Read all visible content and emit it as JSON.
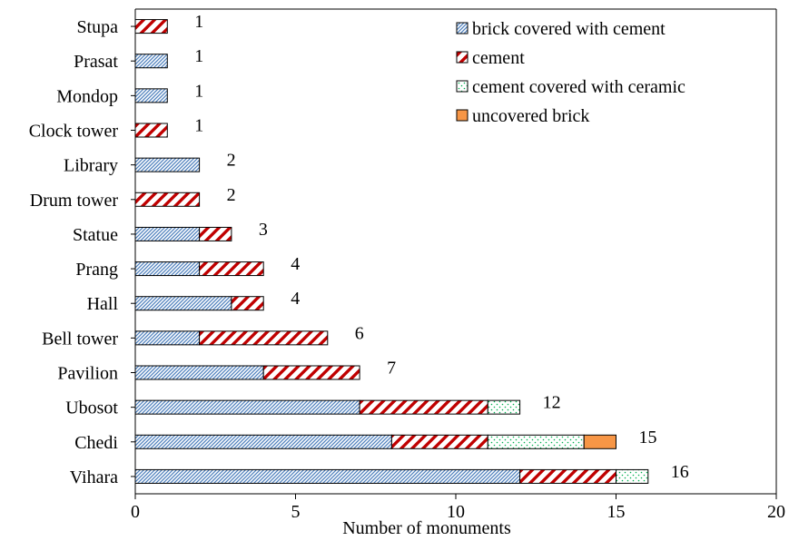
{
  "chart_data": {
    "type": "bar",
    "orientation": "horizontal",
    "stacked": true,
    "title": "",
    "xlabel": "Number of monuments",
    "ylabel": "",
    "xlim": [
      0,
      20
    ],
    "xticks": [
      0,
      5,
      10,
      15,
      20
    ],
    "grid": false,
    "legend_position": "top-right",
    "categories": [
      "Stupa",
      "Prasat",
      "Mondop",
      "Clock tower",
      "Library",
      "Drum tower",
      "Statue",
      "Prang",
      "Hall",
      "Bell tower",
      "Pavilion",
      "Ubosot",
      "Chedi",
      "Vihara"
    ],
    "series": [
      {
        "name": "brick covered with cement",
        "color": "#4f81bd",
        "pattern": "diagonal-hatch",
        "values": [
          0,
          1,
          1,
          0,
          2,
          0,
          2,
          2,
          3,
          2,
          4,
          7,
          8,
          12
        ]
      },
      {
        "name": "cement",
        "color": "#c00000",
        "pattern": "wide-diagonal-stripes",
        "values": [
          1,
          0,
          0,
          1,
          0,
          2,
          1,
          2,
          1,
          4,
          3,
          4,
          3,
          3
        ]
      },
      {
        "name": "cement covered with ceramic",
        "color": "#00b050",
        "pattern": "dots",
        "values": [
          0,
          0,
          0,
          0,
          0,
          0,
          0,
          0,
          0,
          0,
          0,
          1,
          3,
          1
        ]
      },
      {
        "name": "uncovered brick",
        "color": "#f79646",
        "pattern": "solid",
        "values": [
          0,
          0,
          0,
          0,
          0,
          0,
          0,
          0,
          0,
          0,
          0,
          0,
          1,
          0
        ]
      }
    ],
    "totals": [
      1,
      1,
      1,
      1,
      2,
      2,
      3,
      4,
      4,
      6,
      7,
      12,
      15,
      16
    ]
  }
}
